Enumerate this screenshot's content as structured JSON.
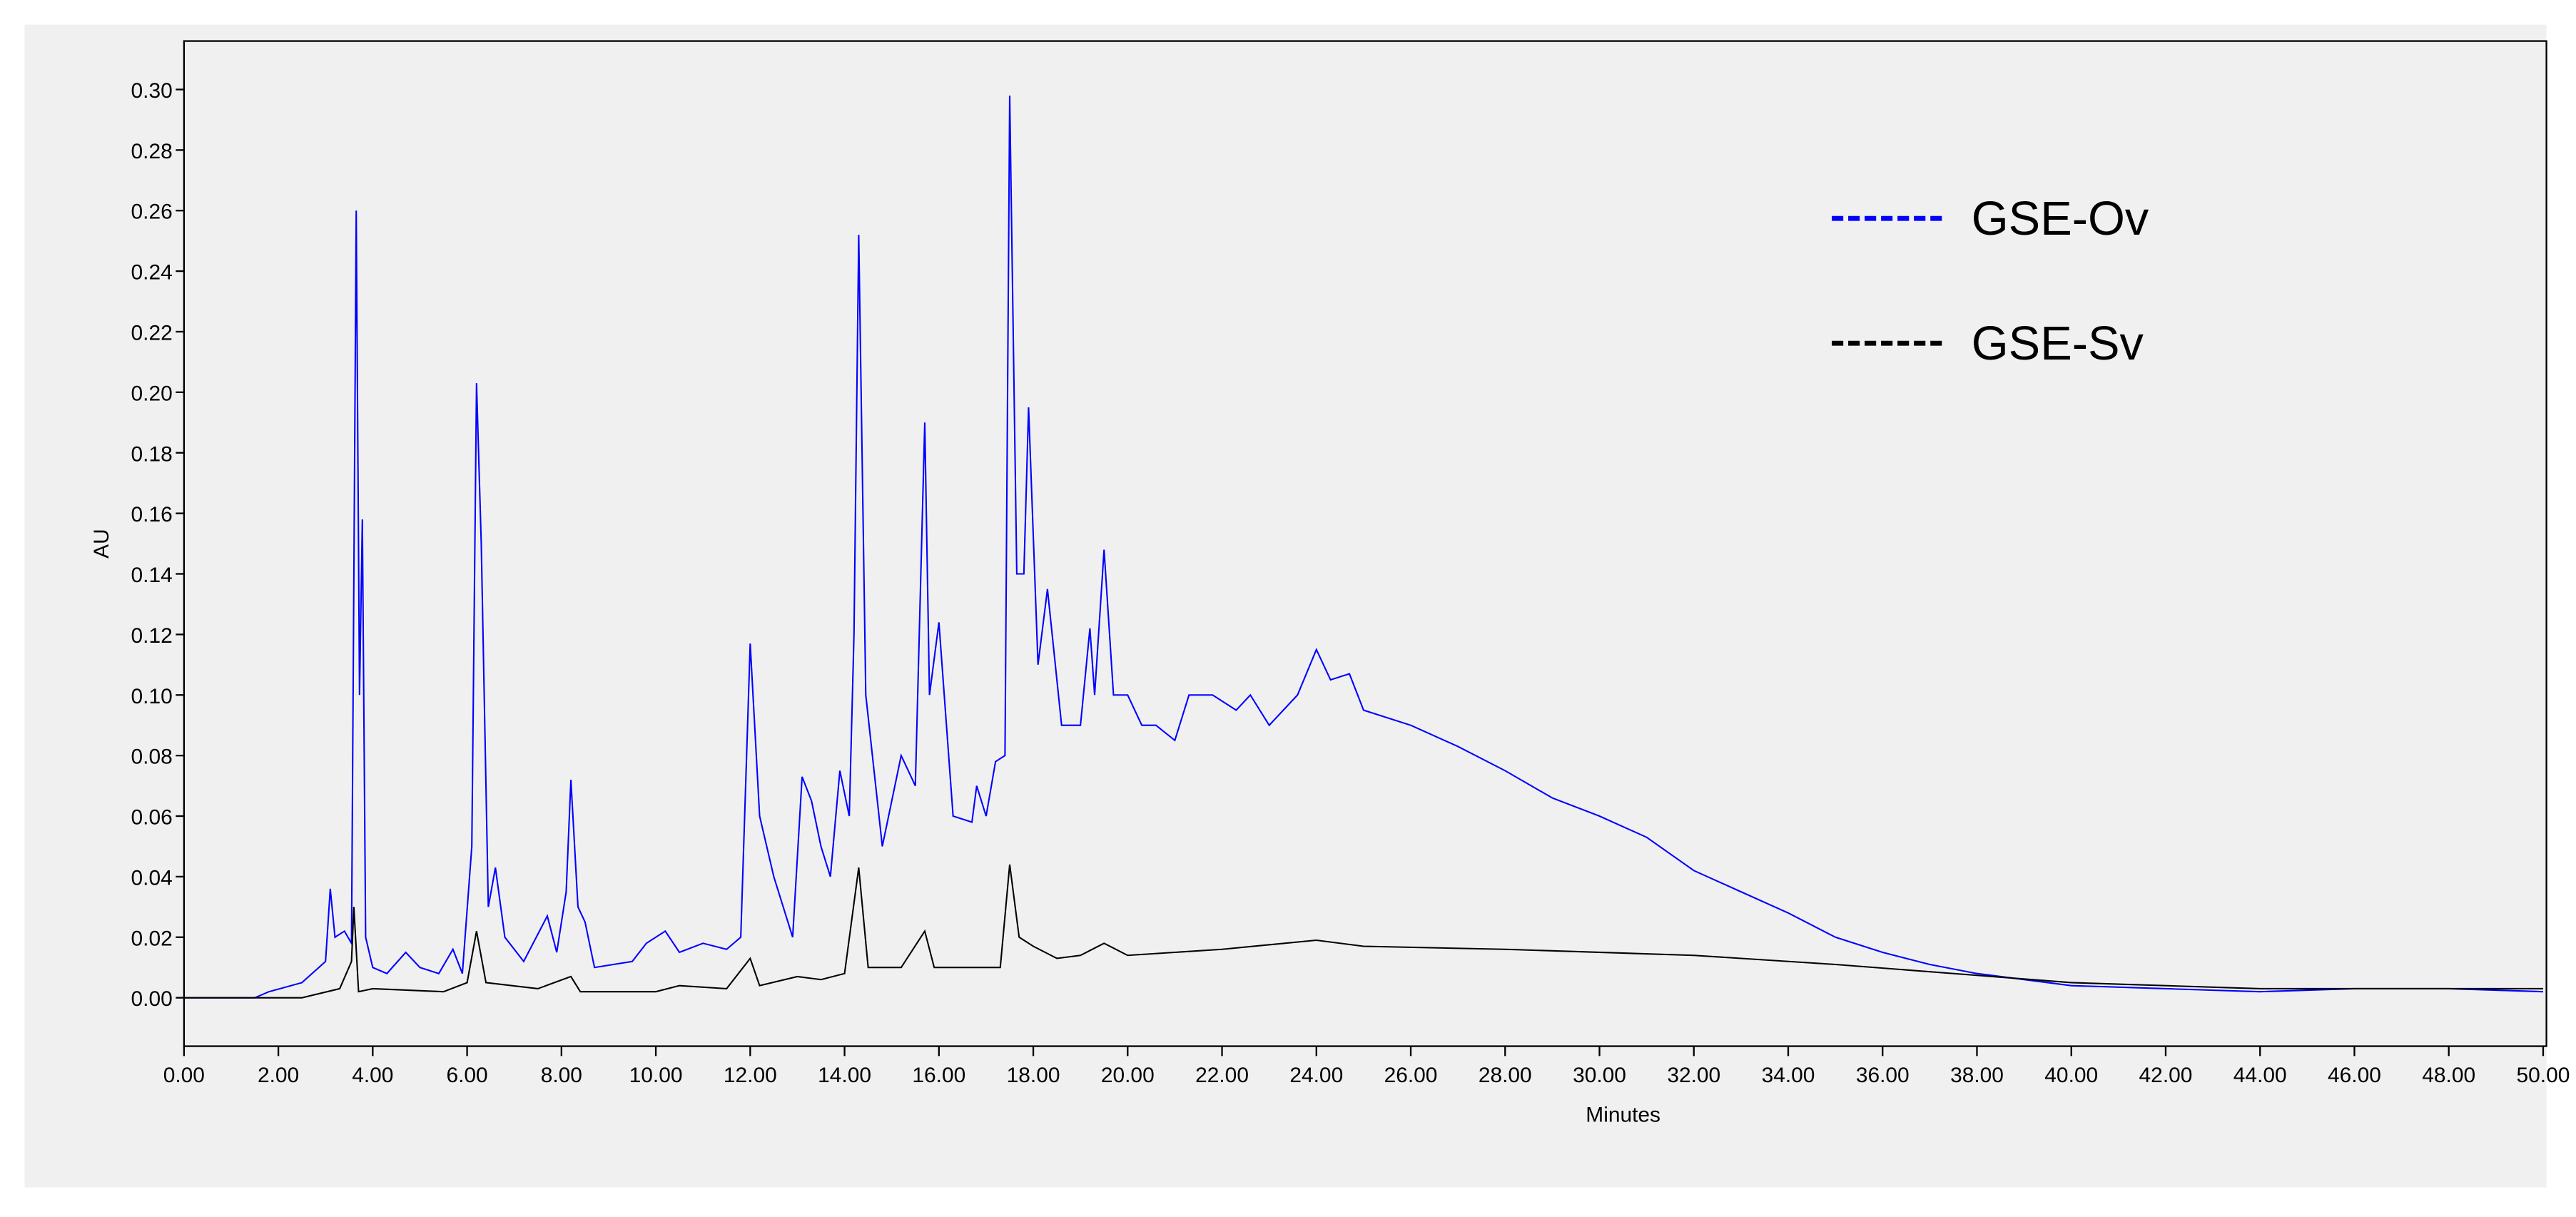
{
  "chart_data": {
    "type": "line",
    "xlabel": "Minutes",
    "ylabel": "AU",
    "xlim": [
      0,
      50
    ],
    "ylim": [
      -0.016,
      0.316
    ],
    "xticks": [
      {
        "value": 0,
        "label": "0.00"
      },
      {
        "value": 2,
        "label": "2.00"
      },
      {
        "value": 4,
        "label": "4.00"
      },
      {
        "value": 6,
        "label": "6.00"
      },
      {
        "value": 8,
        "label": "8.00"
      },
      {
        "value": 10,
        "label": "10.00"
      },
      {
        "value": 12,
        "label": "12.00"
      },
      {
        "value": 14,
        "label": "14.00"
      },
      {
        "value": 16,
        "label": "16.00"
      },
      {
        "value": 18,
        "label": "18.00"
      },
      {
        "value": 20,
        "label": "20.00"
      },
      {
        "value": 22,
        "label": "22.00"
      },
      {
        "value": 24,
        "label": "24.00"
      },
      {
        "value": 26,
        "label": "26.00"
      },
      {
        "value": 28,
        "label": "28.00"
      },
      {
        "value": 30,
        "label": "30.00"
      },
      {
        "value": 32,
        "label": "32.00"
      },
      {
        "value": 34,
        "label": "34.00"
      },
      {
        "value": 36,
        "label": "36.00"
      },
      {
        "value": 38,
        "label": "38.00"
      },
      {
        "value": 40,
        "label": "40.00"
      },
      {
        "value": 42,
        "label": "42.00"
      },
      {
        "value": 44,
        "label": "44.00"
      },
      {
        "value": 46,
        "label": "46.00"
      },
      {
        "value": 48,
        "label": "48.00"
      },
      {
        "value": 50,
        "label": "50.00"
      }
    ],
    "yticks": [
      {
        "value": 0,
        "label": "0.00"
      },
      {
        "value": 0.02,
        "label": "0.02"
      },
      {
        "value": 0.04,
        "label": "0.04"
      },
      {
        "value": 0.06,
        "label": "0.06"
      },
      {
        "value": 0.08,
        "label": "0.08"
      },
      {
        "value": 0.1,
        "label": "0.10"
      },
      {
        "value": 0.12,
        "label": "0.12"
      },
      {
        "value": 0.14,
        "label": "0.14"
      },
      {
        "value": 0.16,
        "label": "0.16"
      },
      {
        "value": 0.18,
        "label": "0.18"
      },
      {
        "value": 0.2,
        "label": "0.20"
      },
      {
        "value": 0.22,
        "label": "0.22"
      },
      {
        "value": 0.24,
        "label": "0.24"
      },
      {
        "value": 0.26,
        "label": "0.26"
      },
      {
        "value": 0.28,
        "label": "0.28"
      },
      {
        "value": 0.3,
        "label": "0.30"
      }
    ],
    "legend": "upper right",
    "series": [
      {
        "name": "GSE-Ov",
        "color": "#0000ff",
        "x": [
          0,
          1.5,
          1.8,
          2.5,
          3.0,
          3.1,
          3.2,
          3.4,
          3.55,
          3.65,
          3.72,
          3.78,
          3.85,
          4.0,
          4.3,
          4.7,
          5.0,
          5.4,
          5.7,
          5.9,
          6.1,
          6.2,
          6.3,
          6.45,
          6.6,
          6.8,
          7.2,
          7.7,
          7.9,
          8.1,
          8.2,
          8.35,
          8.5,
          8.7,
          9.5,
          9.8,
          10.2,
          10.5,
          11.0,
          11.5,
          11.8,
          12.0,
          12.2,
          12.5,
          12.9,
          13.1,
          13.3,
          13.5,
          13.7,
          13.9,
          14.1,
          14.2,
          14.3,
          14.45,
          14.8,
          15.2,
          15.5,
          15.7,
          15.8,
          16.0,
          16.3,
          16.7,
          16.8,
          17.0,
          17.2,
          17.4,
          17.5,
          17.65,
          17.8,
          17.9,
          18.1,
          18.3,
          18.6,
          19.0,
          19.2,
          19.3,
          19.5,
          19.7,
          20.0,
          20.3,
          20.6,
          21.0,
          21.3,
          21.8,
          22.3,
          22.6,
          23.0,
          23.6,
          24.0,
          24.3,
          24.7,
          25.0,
          26.0,
          27.0,
          28.0,
          29.0,
          30.0,
          31.0,
          32.0,
          33.0,
          34.0,
          35.0,
          36.0,
          37.0,
          38.0,
          39.0,
          40.0,
          42.0,
          44.0,
          46.0,
          48.0,
          50.0
        ],
        "values": [
          0,
          0,
          0.002,
          0.005,
          0.012,
          0.036,
          0.02,
          0.022,
          0.018,
          0.26,
          0.1,
          0.158,
          0.02,
          0.01,
          0.008,
          0.015,
          0.01,
          0.008,
          0.016,
          0.008,
          0.05,
          0.203,
          0.15,
          0.03,
          0.043,
          0.02,
          0.012,
          0.027,
          0.015,
          0.035,
          0.072,
          0.03,
          0.025,
          0.01,
          0.012,
          0.018,
          0.022,
          0.015,
          0.018,
          0.016,
          0.02,
          0.117,
          0.06,
          0.04,
          0.02,
          0.073,
          0.065,
          0.05,
          0.04,
          0.075,
          0.06,
          0.12,
          0.252,
          0.1,
          0.05,
          0.08,
          0.07,
          0.19,
          0.1,
          0.124,
          0.06,
          0.058,
          0.07,
          0.06,
          0.078,
          0.08,
          0.298,
          0.14,
          0.14,
          0.195,
          0.11,
          0.135,
          0.09,
          0.09,
          0.122,
          0.1,
          0.148,
          0.1,
          0.1,
          0.09,
          0.09,
          0.085,
          0.1,
          0.1,
          0.095,
          0.1,
          0.09,
          0.1,
          0.115,
          0.105,
          0.107,
          0.095,
          0.09,
          0.083,
          0.075,
          0.066,
          0.06,
          0.053,
          0.042,
          0.035,
          0.028,
          0.02,
          0.015,
          0.011,
          0.008,
          0.006,
          0.004,
          0.003,
          0.002,
          0.003,
          0.003,
          0.002
        ]
      },
      {
        "name": "GSE-Sv",
        "color": "#000000",
        "x": [
          0,
          2.5,
          3.3,
          3.55,
          3.6,
          3.7,
          4.0,
          5.5,
          6.0,
          6.2,
          6.4,
          7.5,
          8.2,
          8.4,
          10.0,
          10.5,
          11.5,
          12.0,
          12.2,
          13.0,
          13.5,
          14.0,
          14.3,
          14.5,
          15.2,
          15.7,
          15.9,
          17.3,
          17.5,
          17.7,
          18.0,
          18.5,
          19.0,
          19.5,
          20.0,
          22.0,
          24.0,
          25.0,
          28.0,
          32.0,
          35.0,
          40.0,
          44.0,
          48.0,
          50.0
        ],
        "values": [
          0,
          0,
          0.003,
          0.012,
          0.03,
          0.002,
          0.003,
          0.002,
          0.005,
          0.022,
          0.005,
          0.003,
          0.007,
          0.002,
          0.002,
          0.004,
          0.003,
          0.013,
          0.004,
          0.007,
          0.006,
          0.008,
          0.043,
          0.01,
          0.01,
          0.022,
          0.01,
          0.01,
          0.044,
          0.02,
          0.017,
          0.013,
          0.014,
          0.018,
          0.014,
          0.016,
          0.019,
          0.017,
          0.016,
          0.014,
          0.011,
          0.005,
          0.003,
          0.003,
          0.003
        ]
      }
    ]
  }
}
